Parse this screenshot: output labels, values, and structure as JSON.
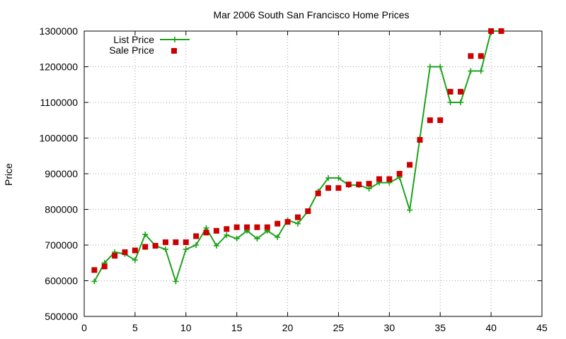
{
  "chart_data": {
    "type": "line",
    "title": "Mar 2006 South San Francisco Home Prices",
    "xlabel": "",
    "ylabel": "Price",
    "xlim": [
      0,
      45
    ],
    "ylim": [
      500000,
      1300000
    ],
    "xticks": [
      0,
      5,
      10,
      15,
      20,
      25,
      30,
      35,
      40,
      45
    ],
    "yticks": [
      500000,
      600000,
      700000,
      800000,
      900000,
      1000000,
      1100000,
      1200000,
      1300000
    ],
    "grid": true,
    "legend_position": "top-left",
    "series": [
      {
        "name": "List Price",
        "style": "line-with-plus-markers",
        "color": "#1aa31a",
        "x": [
          1,
          2,
          3,
          4,
          5,
          6,
          7,
          8,
          9,
          10,
          11,
          12,
          13,
          14,
          15,
          16,
          17,
          18,
          19,
          20,
          21,
          22,
          23,
          24,
          25,
          26,
          27,
          28,
          29,
          30,
          31,
          32,
          33,
          34,
          35,
          36,
          37,
          38,
          39,
          40,
          41
        ],
        "values": [
          598000,
          650000,
          680000,
          675000,
          658000,
          730000,
          698000,
          688000,
          598000,
          688000,
          700000,
          748000,
          698000,
          728000,
          718000,
          740000,
          718000,
          740000,
          722000,
          770000,
          760000,
          795000,
          850000,
          888000,
          888000,
          868000,
          868000,
          858000,
          875000,
          875000,
          890000,
          798000,
          1000000,
          1200000,
          1200000,
          1100000,
          1100000,
          1188000,
          1188000,
          1300000,
          1300000
        ]
      },
      {
        "name": "Sale Price",
        "style": "square-markers",
        "color": "#cc0000",
        "x": [
          1,
          2,
          3,
          4,
          5,
          6,
          7,
          8,
          9,
          10,
          11,
          12,
          13,
          14,
          15,
          16,
          17,
          18,
          19,
          20,
          21,
          22,
          23,
          24,
          25,
          26,
          27,
          28,
          29,
          30,
          31,
          32,
          33,
          34,
          35,
          36,
          37,
          38,
          39,
          40,
          41
        ],
        "values": [
          630000,
          640000,
          670000,
          680000,
          685000,
          695000,
          698000,
          708000,
          708000,
          708000,
          725000,
          735000,
          740000,
          745000,
          750000,
          750000,
          750000,
          750000,
          760000,
          765000,
          778000,
          795000,
          845000,
          860000,
          860000,
          870000,
          870000,
          872000,
          885000,
          885000,
          900000,
          925000,
          995000,
          1050000,
          1050000,
          1130000,
          1130000,
          1230000,
          1230000,
          1300000,
          1300000
        ]
      }
    ]
  }
}
